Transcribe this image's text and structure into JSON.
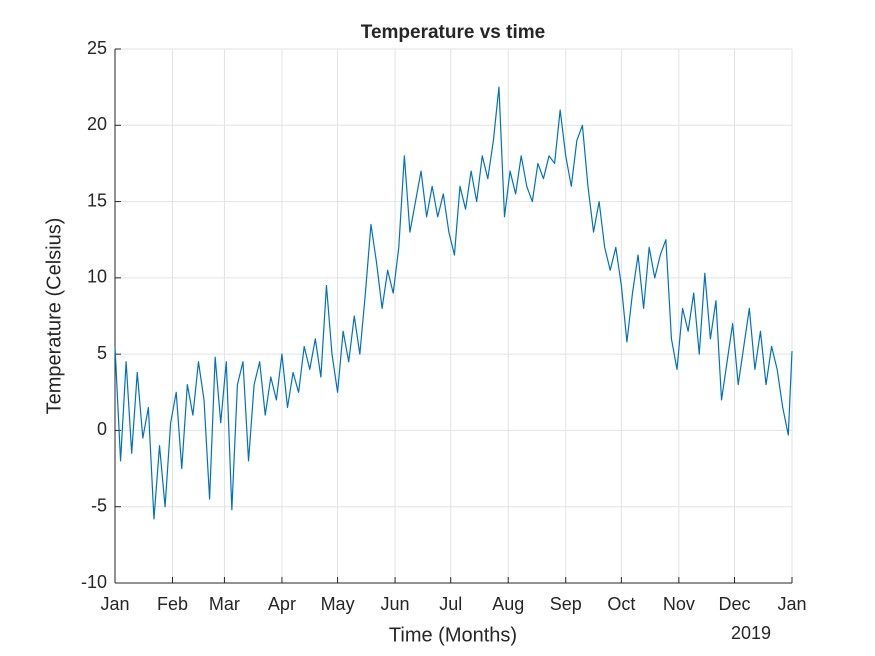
{
  "chart_data": {
    "type": "line",
    "title": "Temperature vs time",
    "x_label": "Time (Months)",
    "y_label": "Temperature (Celsius)",
    "x_annotation": "2019",
    "x": [
      0,
      3,
      6,
      9,
      12,
      15,
      18,
      21,
      24,
      27,
      30,
      33,
      36,
      39,
      42,
      45,
      48,
      51,
      54,
      57,
      60,
      63,
      66,
      69,
      72,
      75,
      78,
      81,
      84,
      87,
      90,
      93,
      96,
      99,
      102,
      105,
      108,
      111,
      114,
      117,
      120,
      123,
      126,
      129,
      132,
      135,
      138,
      141,
      144,
      147,
      150,
      153,
      156,
      159,
      162,
      165,
      168,
      171,
      174,
      177,
      180,
      183,
      186,
      189,
      192,
      195,
      198,
      201,
      204,
      207,
      210,
      213,
      216,
      219,
      222,
      225,
      228,
      231,
      234,
      237,
      240,
      243,
      246,
      249,
      252,
      255,
      258,
      261,
      264,
      267,
      270,
      273,
      276,
      279,
      282,
      285,
      288,
      291,
      294,
      297,
      300,
      303,
      306,
      309,
      312,
      315,
      318,
      321,
      324,
      327,
      330,
      333,
      336,
      339,
      342,
      345,
      348,
      351,
      354,
      357,
      360,
      363,
      365
    ],
    "series": [
      {
        "name": "Temperature",
        "color": "#0072bd",
        "values": [
          5.5,
          -2,
          4.5,
          -1.5,
          3.8,
          -0.5,
          1.5,
          -5.8,
          -1,
          -5,
          0.5,
          2.5,
          -2.5,
          3,
          1,
          4.5,
          2,
          -4.5,
          4.8,
          0.5,
          4.5,
          -5.2,
          3,
          4.5,
          -2,
          3,
          4.5,
          1,
          3.5,
          2,
          5,
          1.5,
          3.8,
          2.5,
          5.5,
          4,
          6,
          3.5,
          9.5,
          5,
          2.5,
          6.5,
          4.5,
          7.5,
          5,
          9,
          13.5,
          11,
          8,
          10.5,
          9,
          12,
          18,
          13,
          15,
          17,
          14,
          16,
          14,
          15.5,
          13,
          11.5,
          16,
          14.5,
          17,
          15,
          18,
          16.5,
          19,
          22.5,
          14,
          17,
          15.5,
          18,
          16,
          15,
          17.5,
          16.5,
          18,
          17.5,
          21,
          18,
          16,
          19,
          20,
          16,
          13,
          15,
          12,
          10.5,
          12,
          9.5,
          5.8,
          9,
          11.5,
          8,
          12,
          10,
          11.5,
          12.5,
          6,
          4,
          8,
          6.5,
          9,
          5,
          10.3,
          6,
          8.5,
          2,
          4.5,
          7,
          3,
          5.5,
          8,
          4,
          6.5,
          3,
          5.5,
          4,
          1.5,
          -0.3,
          5.2
        ]
      }
    ],
    "xlim": [
      0,
      365
    ],
    "xticks": [
      {
        "value": 0,
        "label": "Jan"
      },
      {
        "value": 31,
        "label": "Feb"
      },
      {
        "value": 59,
        "label": "Mar"
      },
      {
        "value": 90,
        "label": "Apr"
      },
      {
        "value": 120,
        "label": "May"
      },
      {
        "value": 151,
        "label": "Jun"
      },
      {
        "value": 181,
        "label": "Jul"
      },
      {
        "value": 212,
        "label": "Aug"
      },
      {
        "value": 243,
        "label": "Sep"
      },
      {
        "value": 273,
        "label": "Oct"
      },
      {
        "value": 304,
        "label": "Nov"
      },
      {
        "value": 334,
        "label": "Dec"
      },
      {
        "value": 365,
        "label": "Jan"
      }
    ],
    "ylim": [
      -10,
      25
    ],
    "yticks": [
      -10,
      -5,
      0,
      5,
      10,
      15,
      20,
      25
    ],
    "grid": true
  }
}
